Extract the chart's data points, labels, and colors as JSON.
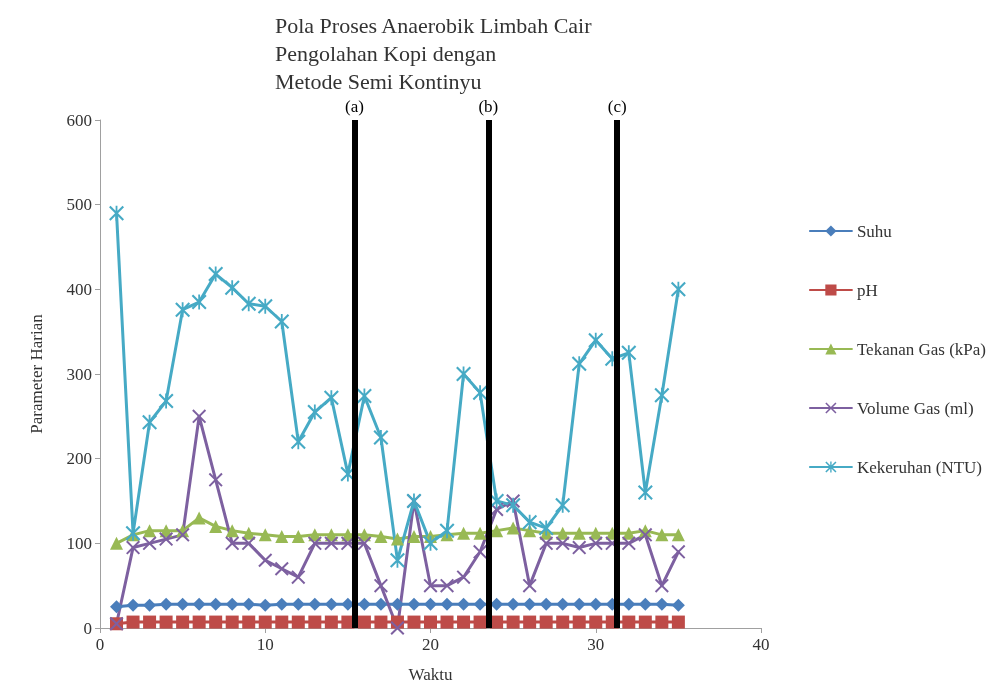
{
  "chart_data": {
    "type": "line",
    "title": "Pola Proses Anaerobik Limbah Cair\nPengolahan Kopi dengan\nMetode Semi Kontinyu",
    "xlabel": "Waktu",
    "ylabel": "Parameter Harian",
    "x": [
      1,
      2,
      3,
      4,
      5,
      6,
      7,
      8,
      9,
      10,
      11,
      12,
      13,
      14,
      15,
      16,
      17,
      18,
      19,
      20,
      21,
      22,
      23,
      24,
      25,
      26,
      27,
      28,
      29,
      30,
      31,
      32,
      33,
      34,
      35
    ],
    "series": [
      {
        "name": "Suhu",
        "color": "#4a7ebb",
        "marker": "diamond",
        "values": [
          25,
          27,
          27,
          28,
          28,
          28,
          28,
          28,
          28,
          27,
          28,
          28,
          28,
          28,
          28,
          28,
          28,
          28,
          28,
          28,
          28,
          28,
          28,
          28,
          28,
          28,
          28,
          28,
          28,
          28,
          28,
          28,
          28,
          28,
          27
        ]
      },
      {
        "name": "pH",
        "color": "#be4b48",
        "marker": "square",
        "values": [
          5,
          7,
          7,
          7,
          7,
          7,
          7,
          7,
          7,
          7,
          7,
          7,
          7,
          7,
          7,
          7,
          7,
          7,
          7,
          7,
          7,
          7,
          7,
          7,
          7,
          7,
          7,
          7,
          7,
          7,
          7,
          7,
          7,
          7,
          7
        ]
      },
      {
        "name": "Tekanan Gas (kPa)",
        "color": "#98b954",
        "marker": "triangle",
        "values": [
          100,
          110,
          115,
          115,
          115,
          130,
          120,
          115,
          112,
          110,
          108,
          108,
          110,
          110,
          110,
          110,
          108,
          105,
          108,
          108,
          110,
          112,
          112,
          115,
          118,
          115,
          112,
          112,
          112,
          112,
          112,
          112,
          115,
          110,
          110
        ]
      },
      {
        "name": "Volume Gas (ml)",
        "color": "#7d60a0",
        "marker": "cross",
        "values": [
          5,
          95,
          100,
          105,
          110,
          250,
          175,
          100,
          100,
          80,
          70,
          60,
          100,
          100,
          100,
          100,
          50,
          0,
          150,
          50,
          50,
          60,
          90,
          140,
          150,
          50,
          100,
          100,
          95,
          100,
          100,
          100,
          110,
          50,
          90
        ]
      },
      {
        "name": "Kekeruhan (NTU)",
        "color": "#46aac5",
        "marker": "star",
        "values": [
          490,
          112,
          243,
          268,
          376,
          385,
          418,
          402,
          383,
          380,
          362,
          220,
          255,
          272,
          182,
          274,
          225,
          80,
          150,
          100,
          115,
          300,
          278,
          150,
          145,
          125,
          118,
          145,
          312,
          340,
          318,
          325,
          160,
          275,
          400
        ]
      }
    ],
    "ref_lines": [
      {
        "axis": "x",
        "value": 15.4,
        "label": "(a)",
        "color": "#000000"
      },
      {
        "axis": "x",
        "value": 23.5,
        "label": "(b)",
        "color": "#000000"
      },
      {
        "axis": "x",
        "value": 31.3,
        "label": "(c)",
        "color": "#000000"
      }
    ],
    "xlim": [
      0,
      40
    ],
    "xticks": [
      0,
      10,
      20,
      30,
      40
    ],
    "ylim": [
      0,
      600
    ],
    "yticks": [
      0,
      100,
      200,
      300,
      400,
      500,
      600
    ],
    "grid": false,
    "legend": "right",
    "line_style": "solid"
  }
}
